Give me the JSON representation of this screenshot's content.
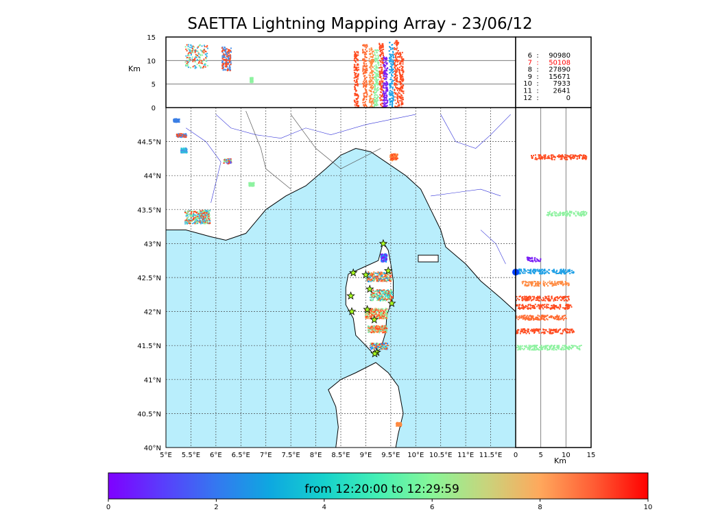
{
  "chart_data": {
    "type": "scatter",
    "title": "SAETTA Lightning Mapping Array - 23/06/12",
    "map": {
      "lon_range": [
        5,
        12
      ],
      "lat_range": [
        40,
        45
      ],
      "lon_ticks": [
        "5°E",
        "5.5°E",
        "6°E",
        "6.5°E",
        "7°E",
        "7.5°E",
        "8°E",
        "8.5°E",
        "9°E",
        "9.5°E",
        "10°E",
        "10.5°E",
        "11°E",
        "11.5°E"
      ],
      "lat_ticks": [
        "40°N",
        "40.5°N",
        "41°N",
        "41.5°N",
        "42°N",
        "42.5°N",
        "43°N",
        "43.5°N",
        "44°N",
        "44.5°N"
      ],
      "grid": true,
      "sea_color": "#b9eefc",
      "stations": [
        {
          "lon": 9.35,
          "lat": 43.0
        },
        {
          "lon": 8.75,
          "lat": 42.57
        },
        {
          "lon": 9.0,
          "lat": 42.54
        },
        {
          "lon": 9.45,
          "lat": 42.6
        },
        {
          "lon": 8.7,
          "lat": 42.23
        },
        {
          "lon": 9.08,
          "lat": 42.33
        },
        {
          "lon": 9.52,
          "lat": 42.12
        },
        {
          "lon": 8.72,
          "lat": 42.0
        },
        {
          "lon": 9.03,
          "lat": 42.03
        },
        {
          "lon": 9.17,
          "lat": 41.88
        },
        {
          "lon": 9.22,
          "lat": 41.4
        },
        {
          "lon": 9.18,
          "lat": 41.38
        }
      ],
      "clusters": [
        {
          "lon": 5.62,
          "lat": 43.4,
          "w": 0.5,
          "h": 0.2,
          "colors": [
            "#ff4b1f",
            "#8ef2a0",
            "#3fb5e6"
          ]
        },
        {
          "lon": 5.3,
          "lat": 44.6,
          "w": 0.2,
          "h": 0.05,
          "colors": [
            "#ff4b1f",
            "#4a8fe8"
          ]
        },
        {
          "lon": 5.35,
          "lat": 44.38,
          "w": 0.12,
          "h": 0.07,
          "colors": [
            "#4a8fe8",
            "#25d0d8"
          ]
        },
        {
          "lon": 5.2,
          "lat": 44.82,
          "w": 0.12,
          "h": 0.05,
          "colors": [
            "#3b7fe5"
          ]
        },
        {
          "lon": 6.22,
          "lat": 44.22,
          "w": 0.15,
          "h": 0.07,
          "colors": [
            "#ff4b1f",
            "#6a5ff0",
            "#8ef2a0"
          ]
        },
        {
          "lon": 6.7,
          "lat": 43.88,
          "w": 0.1,
          "h": 0.05,
          "colors": [
            "#8ef2a0"
          ]
        },
        {
          "lon": 9.55,
          "lat": 44.28,
          "w": 0.15,
          "h": 0.1,
          "colors": [
            "#ff4b1f",
            "#ff8a40"
          ]
        },
        {
          "lon": 9.35,
          "lat": 42.8,
          "w": 0.12,
          "h": 0.12,
          "colors": [
            "#7a1ff5",
            "#1f8fff"
          ]
        },
        {
          "lon": 9.25,
          "lat": 42.52,
          "w": 0.5,
          "h": 0.14,
          "colors": [
            "#1fa0e6",
            "#ff8a40",
            "#ff4b1f",
            "#8ef2a0"
          ]
        },
        {
          "lon": 9.3,
          "lat": 42.25,
          "w": 0.45,
          "h": 0.16,
          "colors": [
            "#ff4b1f",
            "#8ef2a0",
            "#1fd0d8"
          ]
        },
        {
          "lon": 9.2,
          "lat": 41.98,
          "w": 0.45,
          "h": 0.15,
          "colors": [
            "#ff4b1f",
            "#ff8a40",
            "#8ef2a0"
          ]
        },
        {
          "lon": 9.22,
          "lat": 41.75,
          "w": 0.38,
          "h": 0.1,
          "colors": [
            "#ff4b1f",
            "#ff8a40",
            "#7ae8b0"
          ]
        },
        {
          "lon": 9.25,
          "lat": 41.5,
          "w": 0.35,
          "h": 0.09,
          "colors": [
            "#ff4b1f",
            "#8ef2a0",
            "#1f8fff"
          ]
        },
        {
          "lon": 9.65,
          "lat": 40.35,
          "w": 0.1,
          "h": 0.05,
          "colors": [
            "#ff8a40"
          ]
        }
      ]
    },
    "altitude_lon": {
      "ylabel": "Km",
      "y_ticks": [
        "0",
        "5",
        "10",
        "15"
      ],
      "ylim": [
        0,
        15
      ],
      "hlines": [
        5,
        10
      ],
      "columns": [
        {
          "lon": 8.8,
          "top": 12,
          "color": "#ff4b1f"
        },
        {
          "lon": 8.97,
          "top": 13.5,
          "color": "#ff6a30"
        },
        {
          "lon": 9.1,
          "top": 13,
          "color": "#ff8a40"
        },
        {
          "lon": 9.2,
          "top": 12.5,
          "color": "#8ef2a0"
        },
        {
          "lon": 9.3,
          "top": 14,
          "color": "#ff4b1f"
        },
        {
          "lon": 9.38,
          "top": 11,
          "color": "#7a1ff5"
        },
        {
          "lon": 9.5,
          "top": 14,
          "color": "#1fa0e6"
        },
        {
          "lon": 9.6,
          "top": 14.5,
          "color": "#ff4b1f"
        },
        {
          "lon": 9.7,
          "top": 12,
          "color": "#ff4b1f"
        }
      ],
      "blobs": [
        {
          "lon": 5.6,
          "alt": 11,
          "w": 0.45,
          "h": 5,
          "colors": [
            "#ff4b1f",
            "#8ef2a0",
            "#3fb5e6"
          ]
        },
        {
          "lon": 6.2,
          "alt": 10.5,
          "w": 0.18,
          "h": 5,
          "colors": [
            "#ff4b1f",
            "#4a8fe8"
          ]
        },
        {
          "lon": 6.7,
          "alt": 6,
          "w": 0.05,
          "h": 1,
          "colors": [
            "#8ef2a0"
          ]
        }
      ]
    },
    "altitude_lat": {
      "xlabel": "Km",
      "x_ticks": [
        "0",
        "5",
        "10",
        "15"
      ],
      "xlim": [
        0,
        15
      ],
      "vlines": [
        5,
        10
      ],
      "bands": [
        {
          "lat": 44.28,
          "x0": 3,
          "x1": 14,
          "color": "#ff4b1f"
        },
        {
          "lat": 43.45,
          "x0": 6,
          "x1": 14,
          "color": "#8ef2a0"
        },
        {
          "lat": 42.78,
          "x0": 2,
          "x1": 5,
          "color": "#7a1ff5"
        },
        {
          "lat": 42.6,
          "x0": 0,
          "x1": 11.5,
          "color": "#1fa0e6"
        },
        {
          "lat": 42.42,
          "x0": 1,
          "x1": 10.5,
          "color": "#ff8a40"
        },
        {
          "lat": 42.2,
          "x0": 0,
          "x1": 10.5,
          "color": "#ff4b1f"
        },
        {
          "lat": 42.08,
          "x0": 0,
          "x1": 11,
          "color": "#ff4b1f"
        },
        {
          "lat": 41.92,
          "x0": 0,
          "x1": 10,
          "color": "#ff6a30"
        },
        {
          "lat": 41.72,
          "x0": 0,
          "x1": 11.5,
          "color": "#ff4b1f"
        },
        {
          "lat": 41.48,
          "x0": 0,
          "x1": 13,
          "color": "#8ef2a0"
        }
      ],
      "point": {
        "lat": 42.58,
        "x": 0,
        "color": "#0040ff"
      }
    },
    "station_counts": {
      "rows": [
        {
          "stations": "6",
          "count": "90980",
          "highlight": false
        },
        {
          "stations": "7",
          "count": "50108",
          "highlight": true
        },
        {
          "stations": "8",
          "count": "27890",
          "highlight": false
        },
        {
          "stations": "9",
          "count": "15671",
          "highlight": false
        },
        {
          "stations": "10",
          "count": "7933",
          "highlight": false
        },
        {
          "stations": "11",
          "count": "2641",
          "highlight": false
        },
        {
          "stations": "12",
          "count": "0",
          "highlight": false
        }
      ],
      "separator": ":",
      "highlight_color": "#ff0000"
    },
    "colorbar": {
      "label": "from 12:20:00 to 12:29:59",
      "ticks": [
        "0",
        "2",
        "4",
        "6",
        "8",
        "10"
      ],
      "range": [
        0,
        10
      ],
      "colormap": "rainbow"
    }
  }
}
